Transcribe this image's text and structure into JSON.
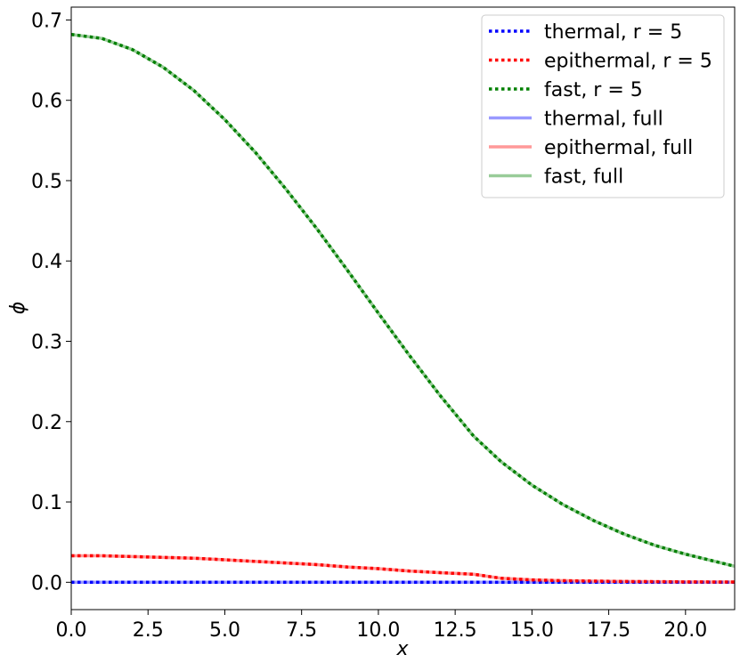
{
  "chart_data": {
    "type": "line",
    "title": "",
    "xlabel": "x",
    "ylabel": "ϕ",
    "xlim": [
      0,
      21.6
    ],
    "ylim": [
      -0.034,
      0.716
    ],
    "xticks": [
      0,
      2.5,
      5,
      7.5,
      10,
      12.5,
      15,
      17.5,
      20
    ],
    "xtick_labels": [
      "0.0",
      "2.5",
      "5.0",
      "7.5",
      "10.0",
      "12.5",
      "15.0",
      "17.5",
      "20.0"
    ],
    "yticks": [
      0,
      0.1,
      0.2,
      0.3,
      0.4,
      0.5,
      0.6,
      0.7
    ],
    "ytick_labels": [
      "0.0",
      "0.1",
      "0.2",
      "0.3",
      "0.4",
      "0.5",
      "0.6",
      "0.7"
    ],
    "grid": false,
    "legend_position": "top-right",
    "x": [
      0,
      1,
      2,
      3,
      4,
      5,
      6,
      7,
      8,
      9,
      10,
      11,
      12,
      13.1,
      14,
      15,
      16,
      17,
      18,
      19,
      20,
      21.6
    ],
    "series": [
      {
        "name": "thermal, r = 5",
        "style": "dotted",
        "color": "#0000ff",
        "values": [
          0,
          0,
          0,
          0,
          0,
          0,
          0,
          0,
          0,
          0,
          0,
          0,
          0,
          0,
          0,
          0,
          0,
          0,
          0,
          0,
          0,
          0
        ]
      },
      {
        "name": "epithermal, r = 5",
        "style": "dotted",
        "color": "#ff0000",
        "values": [
          0.033,
          0.033,
          0.032,
          0.031,
          0.03,
          0.028,
          0.026,
          0.024,
          0.022,
          0.019,
          0.017,
          0.014,
          0.012,
          0.01,
          0.005,
          0.003,
          0.002,
          0.0015,
          0.001,
          0.0008,
          0.0005,
          0.0003
        ]
      },
      {
        "name": "fast, r = 5",
        "style": "dotted",
        "color": "#008000",
        "values": [
          0.682,
          0.677,
          0.663,
          0.641,
          0.612,
          0.576,
          0.535,
          0.489,
          0.44,
          0.388,
          0.335,
          0.283,
          0.233,
          0.182,
          0.15,
          0.121,
          0.097,
          0.077,
          0.06,
          0.046,
          0.035,
          0.02
        ]
      },
      {
        "name": "thermal, full",
        "style": "solid",
        "color": "#9999ff",
        "values": [
          0,
          0,
          0,
          0,
          0,
          0,
          0,
          0,
          0,
          0,
          0,
          0,
          0,
          0,
          0,
          0,
          0,
          0,
          0,
          0,
          0,
          0
        ]
      },
      {
        "name": "epithermal, full",
        "style": "solid",
        "color": "#ff9999",
        "values": [
          0.033,
          0.033,
          0.032,
          0.031,
          0.03,
          0.028,
          0.026,
          0.024,
          0.022,
          0.019,
          0.017,
          0.014,
          0.012,
          0.01,
          0.005,
          0.003,
          0.002,
          0.0015,
          0.001,
          0.0008,
          0.0005,
          0.0003
        ]
      },
      {
        "name": "fast, full",
        "style": "solid",
        "color": "#99cc99",
        "values": [
          0.682,
          0.677,
          0.663,
          0.641,
          0.612,
          0.576,
          0.535,
          0.489,
          0.44,
          0.388,
          0.335,
          0.283,
          0.233,
          0.182,
          0.15,
          0.121,
          0.097,
          0.077,
          0.06,
          0.046,
          0.035,
          0.02
        ]
      }
    ]
  }
}
